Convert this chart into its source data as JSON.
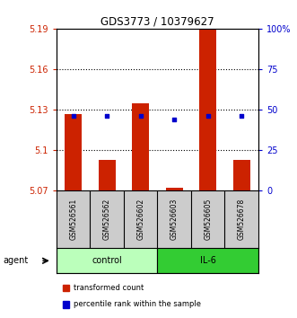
{
  "title": "GDS3773 / 10379627",
  "samples": [
    "GSM526561",
    "GSM526562",
    "GSM526602",
    "GSM526603",
    "GSM526605",
    "GSM526678"
  ],
  "ylim": [
    5.07,
    5.19
  ],
  "yticks": [
    5.07,
    5.1,
    5.13,
    5.16,
    5.19
  ],
  "ytick_labels": [
    "5.07",
    "5.1",
    "5.13",
    "5.16",
    "5.19"
  ],
  "right_yticks": [
    0,
    25,
    50,
    75,
    100
  ],
  "right_ytick_labels": [
    "0",
    "25",
    "50",
    "75",
    "100%"
  ],
  "bar_values": [
    5.127,
    5.093,
    5.135,
    5.072,
    5.19,
    5.093
  ],
  "bar_base": 5.07,
  "percentile_values": [
    0.46,
    0.46,
    0.46,
    0.44,
    0.46,
    0.46
  ],
  "bar_color": "#cc2200",
  "percentile_color": "#0000cc",
  "bar_width": 0.5,
  "group_colors_control": "#bbffbb",
  "group_colors_il6": "#33cc33",
  "left_axis_color": "#cc2200",
  "right_axis_color": "#0000cc",
  "sample_area_color": "#cccccc",
  "legend_items": [
    "transformed count",
    "percentile rank within the sample"
  ],
  "legend_colors": [
    "#cc2200",
    "#0000cc"
  ],
  "grid_ticks": [
    5.1,
    5.13,
    5.16
  ]
}
